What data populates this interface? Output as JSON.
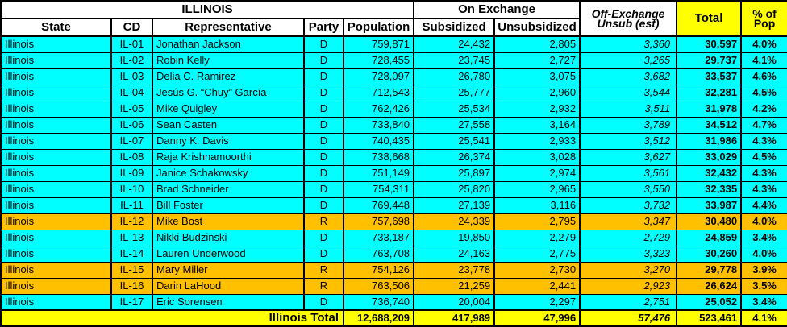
{
  "colors": {
    "dem_row": "#00FFFF",
    "rep_row": "#FFC000",
    "total_row": "#FFFF00",
    "header_bg": "#FFFFFF",
    "border": "#000000"
  },
  "table": {
    "title": "ILLINOIS",
    "group_headers": {
      "on_exchange": "On Exchange",
      "off_exchange_line1": "Off-Exchange",
      "off_exchange_line2": "Unsub (est)",
      "total": "Total",
      "pct_line1": "% of",
      "pct_line2": "Pop"
    },
    "column_headers": {
      "state": "State",
      "cd": "CD",
      "rep": "Representative",
      "party": "Party",
      "population": "Population",
      "subsidized": "Subsidized",
      "unsubsidized": "Unsubsidized"
    },
    "rows": [
      {
        "state": "Illinois",
        "cd": "IL-01",
        "rep": "Jonathan Jackson",
        "party": "D",
        "population": "759,871",
        "subsidized": "24,432",
        "unsubsidized": "2,805",
        "off_exchange": "3,360",
        "total": "30,597",
        "pct": "4.0%"
      },
      {
        "state": "Illinois",
        "cd": "IL-02",
        "rep": "Robin Kelly",
        "party": "D",
        "population": "728,455",
        "subsidized": "23,745",
        "unsubsidized": "2,727",
        "off_exchange": "3,265",
        "total": "29,737",
        "pct": "4.1%"
      },
      {
        "state": "Illinois",
        "cd": "IL-03",
        "rep": "Delia C. Ramirez",
        "party": "D",
        "population": "728,097",
        "subsidized": "26,780",
        "unsubsidized": "3,075",
        "off_exchange": "3,682",
        "total": "33,537",
        "pct": "4.6%"
      },
      {
        "state": "Illinois",
        "cd": "IL-04",
        "rep": "Jesús G. “Chuy” García",
        "party": "D",
        "population": "712,543",
        "subsidized": "25,777",
        "unsubsidized": "2,960",
        "off_exchange": "3,544",
        "total": "32,281",
        "pct": "4.5%"
      },
      {
        "state": "Illinois",
        "cd": "IL-05",
        "rep": "Mike Quigley",
        "party": "D",
        "population": "762,426",
        "subsidized": "25,534",
        "unsubsidized": "2,932",
        "off_exchange": "3,511",
        "total": "31,978",
        "pct": "4.2%"
      },
      {
        "state": "Illinois",
        "cd": "IL-06",
        "rep": "Sean Casten",
        "party": "D",
        "population": "733,840",
        "subsidized": "27,558",
        "unsubsidized": "3,164",
        "off_exchange": "3,789",
        "total": "34,512",
        "pct": "4.7%"
      },
      {
        "state": "Illinois",
        "cd": "IL-07",
        "rep": "Danny K. Davis",
        "party": "D",
        "population": "740,435",
        "subsidized": "25,541",
        "unsubsidized": "2,933",
        "off_exchange": "3,512",
        "total": "31,986",
        "pct": "4.3%"
      },
      {
        "state": "Illinois",
        "cd": "IL-08",
        "rep": "Raja Krishnamoorthi",
        "party": "D",
        "population": "738,668",
        "subsidized": "26,374",
        "unsubsidized": "3,028",
        "off_exchange": "3,627",
        "total": "33,029",
        "pct": "4.5%"
      },
      {
        "state": "Illinois",
        "cd": "IL-09",
        "rep": "Janice Schakowsky",
        "party": "D",
        "population": "751,149",
        "subsidized": "25,897",
        "unsubsidized": "2,974",
        "off_exchange": "3,561",
        "total": "32,432",
        "pct": "4.3%"
      },
      {
        "state": "Illinois",
        "cd": "IL-10",
        "rep": "Brad Schneider",
        "party": "D",
        "population": "754,311",
        "subsidized": "25,820",
        "unsubsidized": "2,965",
        "off_exchange": "3,550",
        "total": "32,335",
        "pct": "4.3%"
      },
      {
        "state": "Illinois",
        "cd": "IL-11",
        "rep": "Bill Foster",
        "party": "D",
        "population": "769,448",
        "subsidized": "27,139",
        "unsubsidized": "3,116",
        "off_exchange": "3,732",
        "total": "33,987",
        "pct": "4.4%"
      },
      {
        "state": "Illinois",
        "cd": "IL-12",
        "rep": "Mike Bost",
        "party": "R",
        "population": "757,698",
        "subsidized": "24,339",
        "unsubsidized": "2,795",
        "off_exchange": "3,347",
        "total": "30,480",
        "pct": "4.0%"
      },
      {
        "state": "Illinois",
        "cd": "IL-13",
        "rep": "Nikki Budzinski",
        "party": "D",
        "population": "733,187",
        "subsidized": "19,850",
        "unsubsidized": "2,279",
        "off_exchange": "2,729",
        "total": "24,859",
        "pct": "3.4%"
      },
      {
        "state": "Illinois",
        "cd": "IL-14",
        "rep": "Lauren Underwood",
        "party": "D",
        "population": "763,708",
        "subsidized": "24,163",
        "unsubsidized": "2,775",
        "off_exchange": "3,323",
        "total": "30,260",
        "pct": "4.0%"
      },
      {
        "state": "Illinois",
        "cd": "IL-15",
        "rep": "Mary Miller",
        "party": "R",
        "population": "754,126",
        "subsidized": "23,778",
        "unsubsidized": "2,730",
        "off_exchange": "3,270",
        "total": "29,778",
        "pct": "3.9%"
      },
      {
        "state": "Illinois",
        "cd": "IL-16",
        "rep": "Darin LaHood",
        "party": "R",
        "population": "763,506",
        "subsidized": "21,259",
        "unsubsidized": "2,441",
        "off_exchange": "2,923",
        "total": "26,624",
        "pct": "3.5%"
      },
      {
        "state": "Illinois",
        "cd": "IL-17",
        "rep": "Eric Sorensen",
        "party": "D",
        "population": "736,740",
        "subsidized": "20,004",
        "unsubsidized": "2,297",
        "off_exchange": "2,751",
        "total": "25,052",
        "pct": "3.4%"
      }
    ],
    "total_row": {
      "label": "Illinois Total",
      "population": "12,688,209",
      "subsidized": "417,989",
      "unsubsidized": "47,996",
      "off_exchange": "57,476",
      "total": "523,461",
      "pct": "4.1%"
    }
  }
}
